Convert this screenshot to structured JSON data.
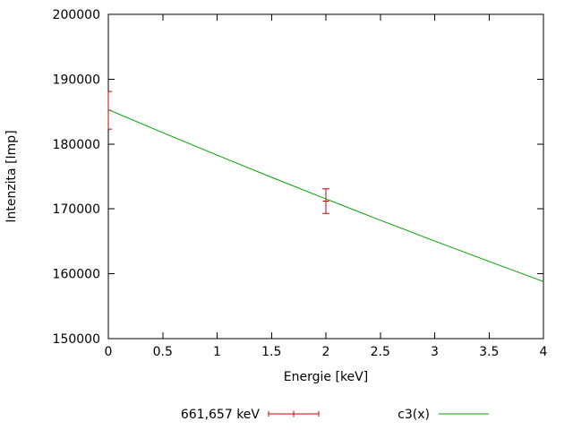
{
  "chart_data": {
    "type": "line",
    "title": "",
    "xlabel": "Energie [keV]",
    "ylabel": "Intenzita [Imp]",
    "xlim": [
      0,
      4
    ],
    "ylim": [
      150000,
      200000
    ],
    "xticks": [
      0,
      0.5,
      1,
      1.5,
      2,
      2.5,
      3,
      3.5,
      4
    ],
    "yticks": [
      150000,
      160000,
      170000,
      180000,
      190000,
      200000
    ],
    "grid": false,
    "legend_position": "below-plot",
    "axis_color": "#000000",
    "series": [
      {
        "name": "661,657 keV",
        "type": "errorbars",
        "color": "#cc0000",
        "marker": "plus",
        "points": [
          {
            "x": 0,
            "y": 185200,
            "y_low": 182300,
            "y_high": 188100
          },
          {
            "x": 2,
            "y": 171200,
            "y_low": 169300,
            "y_high": 173100
          }
        ]
      },
      {
        "name": "c3(x)",
        "type": "line",
        "color": "#00a000",
        "x": [
          0,
          0.5,
          1,
          1.5,
          2,
          2.5,
          3,
          3.5,
          4
        ],
        "y": [
          185300,
          181760,
          178290,
          174880,
          171540,
          168260,
          165050,
          161900,
          158800
        ]
      }
    ]
  }
}
